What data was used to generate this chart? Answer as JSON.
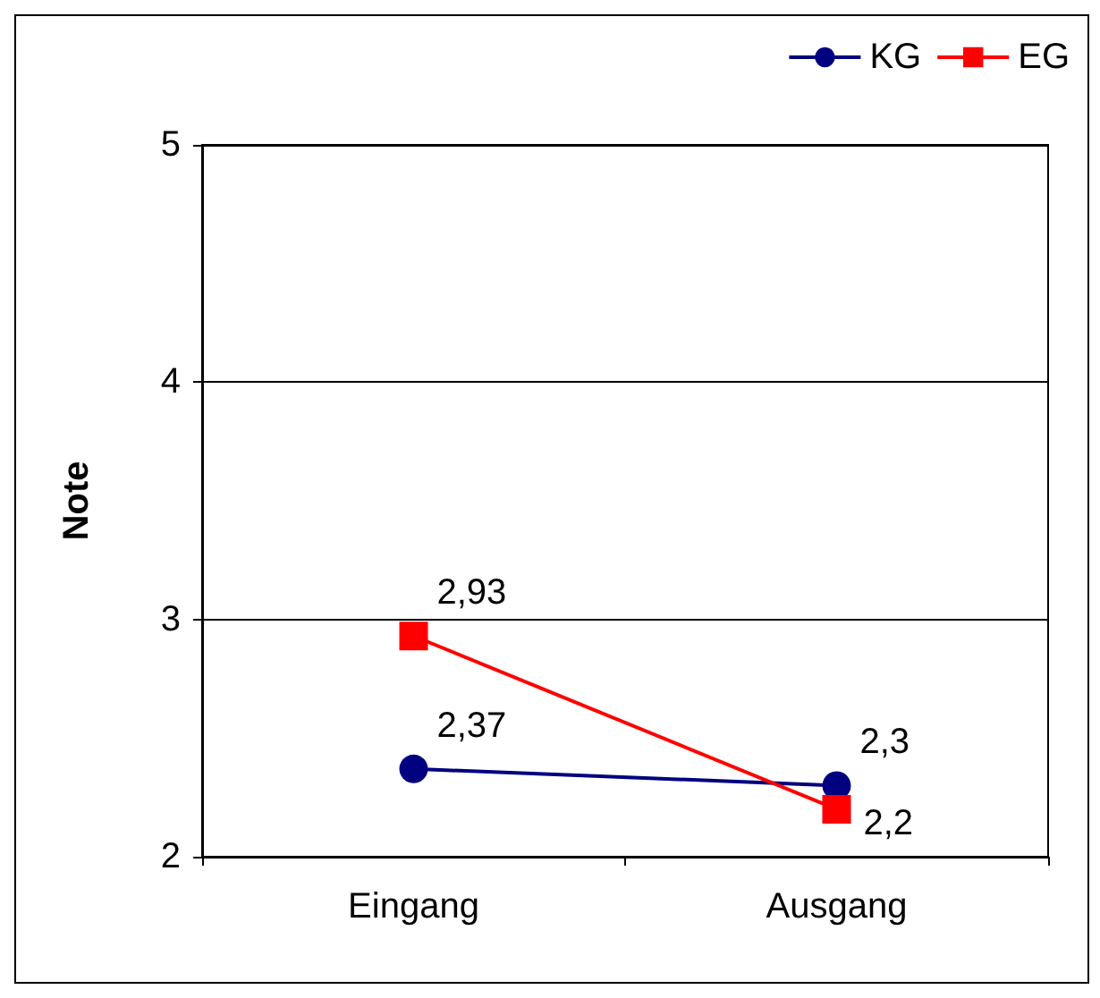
{
  "chart_data": {
    "type": "line",
    "ylabel": "Note",
    "categories": [
      "Eingang",
      "Ausgang"
    ],
    "series": [
      {
        "name": "KG",
        "color": "#000080",
        "marker": "circle",
        "values": [
          2.37,
          2.3
        ],
        "value_labels": [
          "2,37",
          "2,3"
        ]
      },
      {
        "name": "EG",
        "color": "#ff0000",
        "marker": "square",
        "values": [
          2.93,
          2.2
        ],
        "value_labels": [
          "2,93",
          "2,2"
        ]
      }
    ],
    "ylim": [
      2,
      5
    ],
    "yticks": [
      2,
      3,
      4,
      5
    ],
    "grid": "y",
    "legend": "top right"
  }
}
